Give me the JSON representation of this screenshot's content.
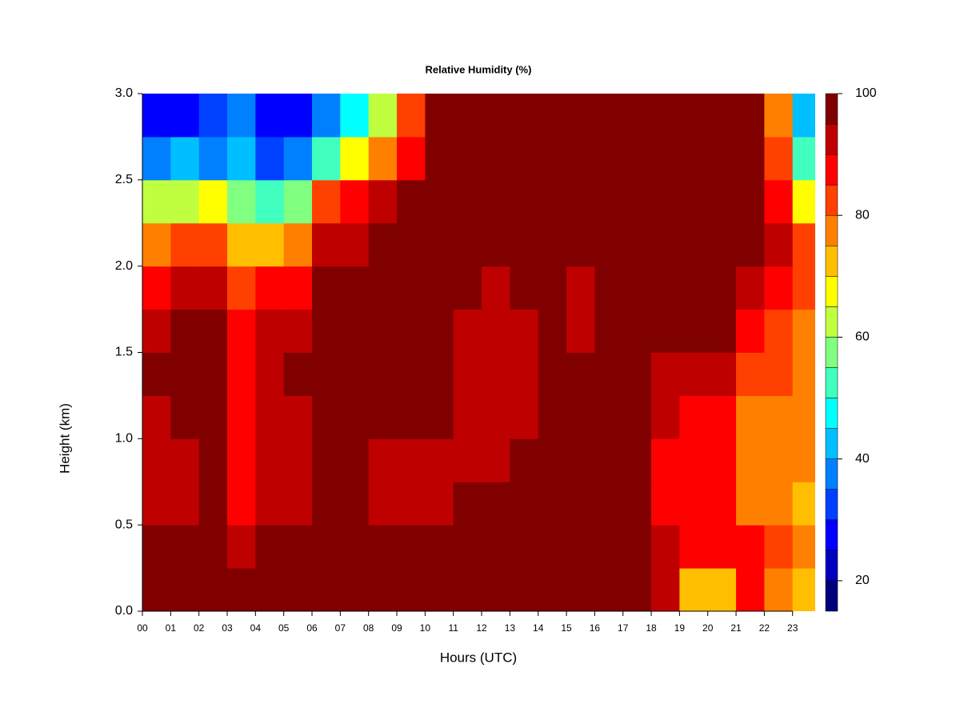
{
  "chart_data": {
    "type": "heatmap",
    "title": "Relative Humidity (%)",
    "x_label": "Hours (UTC)",
    "y_label": "Height (km)",
    "x": [
      0.5,
      1.5,
      2.5,
      3.5,
      4.5,
      5.5,
      6.5,
      7.5,
      8.5,
      9.5,
      10.5,
      11.5,
      12.5,
      13.5,
      14.5,
      15.5,
      16.5,
      17.5,
      18.5,
      19.5,
      20.5,
      21.5,
      22.5,
      23.5
    ],
    "y": [
      0.125,
      0.375,
      0.625,
      0.875,
      1.125,
      1.375,
      1.625,
      1.875,
      2.125,
      2.375,
      2.625,
      2.875
    ],
    "z": [
      [
        97,
        97,
        97,
        97,
        97,
        97,
        97,
        97,
        97,
        97,
        97,
        97,
        97,
        97,
        97,
        97,
        97,
        97,
        92,
        75,
        75,
        90,
        80,
        75
      ],
      [
        97,
        97,
        97,
        93,
        97,
        97,
        97,
        97,
        97,
        97,
        97,
        97,
        97,
        97,
        97,
        97,
        97,
        97,
        92,
        88,
        90,
        88,
        82,
        78
      ],
      [
        93,
        92,
        96,
        88,
        92,
        92,
        97,
        97,
        94,
        94,
        94,
        97,
        97,
        97,
        97,
        97,
        97,
        97,
        90,
        88,
        88,
        80,
        80,
        75
      ],
      [
        92,
        93,
        96,
        87,
        92,
        93,
        97,
        96,
        93,
        92,
        93,
        94,
        95,
        96,
        97,
        97,
        97,
        97,
        90,
        88,
        88,
        78,
        80,
        78
      ],
      [
        95,
        96,
        97,
        88,
        93,
        95,
        97,
        97,
        97,
        97,
        97,
        94,
        93,
        95,
        96,
        97,
        97,
        97,
        91,
        90,
        90,
        80,
        80,
        78
      ],
      [
        96,
        97,
        97,
        88,
        93,
        96,
        97,
        97,
        97,
        97,
        97,
        94,
        94,
        95,
        96,
        96,
        97,
        97,
        92,
        91,
        93,
        85,
        82,
        78
      ],
      [
        95,
        97,
        97,
        88,
        92,
        95,
        97,
        97,
        97,
        97,
        97,
        95,
        94,
        95,
        96,
        95,
        97,
        97,
        97,
        97,
        97,
        88,
        85,
        80
      ],
      [
        90,
        93,
        94,
        85,
        87,
        88,
        96,
        97,
        97,
        97,
        97,
        96,
        95,
        96,
        96,
        95,
        97,
        97,
        97,
        97,
        97,
        93,
        88,
        82
      ],
      [
        78,
        82,
        85,
        75,
        72,
        78,
        92,
        95,
        97,
        97,
        97,
        97,
        97,
        97,
        97,
        97,
        97,
        97,
        97,
        97,
        97,
        97,
        92,
        82
      ],
      [
        62,
        65,
        68,
        60,
        55,
        60,
        82,
        88,
        92,
        96,
        97,
        97,
        97,
        97,
        97,
        97,
        97,
        97,
        97,
        97,
        97,
        97,
        90,
        70
      ],
      [
        40,
        42,
        40,
        45,
        35,
        40,
        55,
        68,
        80,
        90,
        97,
        97,
        97,
        97,
        97,
        97,
        97,
        97,
        97,
        97,
        97,
        97,
        85,
        55
      ],
      [
        30,
        30,
        32,
        38,
        28,
        30,
        38,
        50,
        65,
        82,
        97,
        97,
        97,
        97,
        97,
        97,
        97,
        97,
        97,
        97,
        97,
        97,
        80,
        45
      ]
    ],
    "xlim": [
      0,
      23.8
    ],
    "ylim": [
      0,
      3
    ],
    "xticks": [
      {
        "value": 0,
        "label": "00"
      },
      {
        "value": 1,
        "label": "01"
      },
      {
        "value": 2,
        "label": "02"
      },
      {
        "value": 3,
        "label": "03"
      },
      {
        "value": 4,
        "label": "04"
      },
      {
        "value": 5,
        "label": "05"
      },
      {
        "value": 6,
        "label": "06"
      },
      {
        "value": 7,
        "label": "07"
      },
      {
        "value": 8,
        "label": "08"
      },
      {
        "value": 9,
        "label": "09"
      },
      10,
      11,
      12,
      13,
      14,
      15,
      16,
      17,
      18,
      19,
      20,
      21,
      22,
      23
    ],
    "yticks": [
      {
        "value": 0,
        "label": "0.0"
      },
      {
        "value": 0.5,
        "label": "0.5"
      },
      {
        "value": 1,
        "label": "1.0"
      },
      {
        "value": 1.5,
        "label": "1.5"
      },
      {
        "value": 2,
        "label": "2.0"
      },
      {
        "value": 2.5,
        "label": "2.5"
      },
      {
        "value": 3,
        "label": "3.0"
      }
    ],
    "levels": [
      15,
      20,
      25,
      30,
      35,
      40,
      45,
      50,
      55,
      60,
      65,
      70,
      75,
      80,
      85,
      90,
      95,
      100
    ],
    "colors": [
      "#00007f",
      "#0000bf",
      "#0000ff",
      "#0040ff",
      "#0080ff",
      "#00bfff",
      "#00ffff",
      "#40ffbf",
      "#80ff80",
      "#bfff40",
      "#ffff00",
      "#ffbf00",
      "#ff8000",
      "#ff4000",
      "#ff0000",
      "#bf0000",
      "#800000"
    ],
    "clim": [
      15,
      100
    ],
    "cticks": [
      20,
      40,
      60,
      80,
      100
    ]
  }
}
